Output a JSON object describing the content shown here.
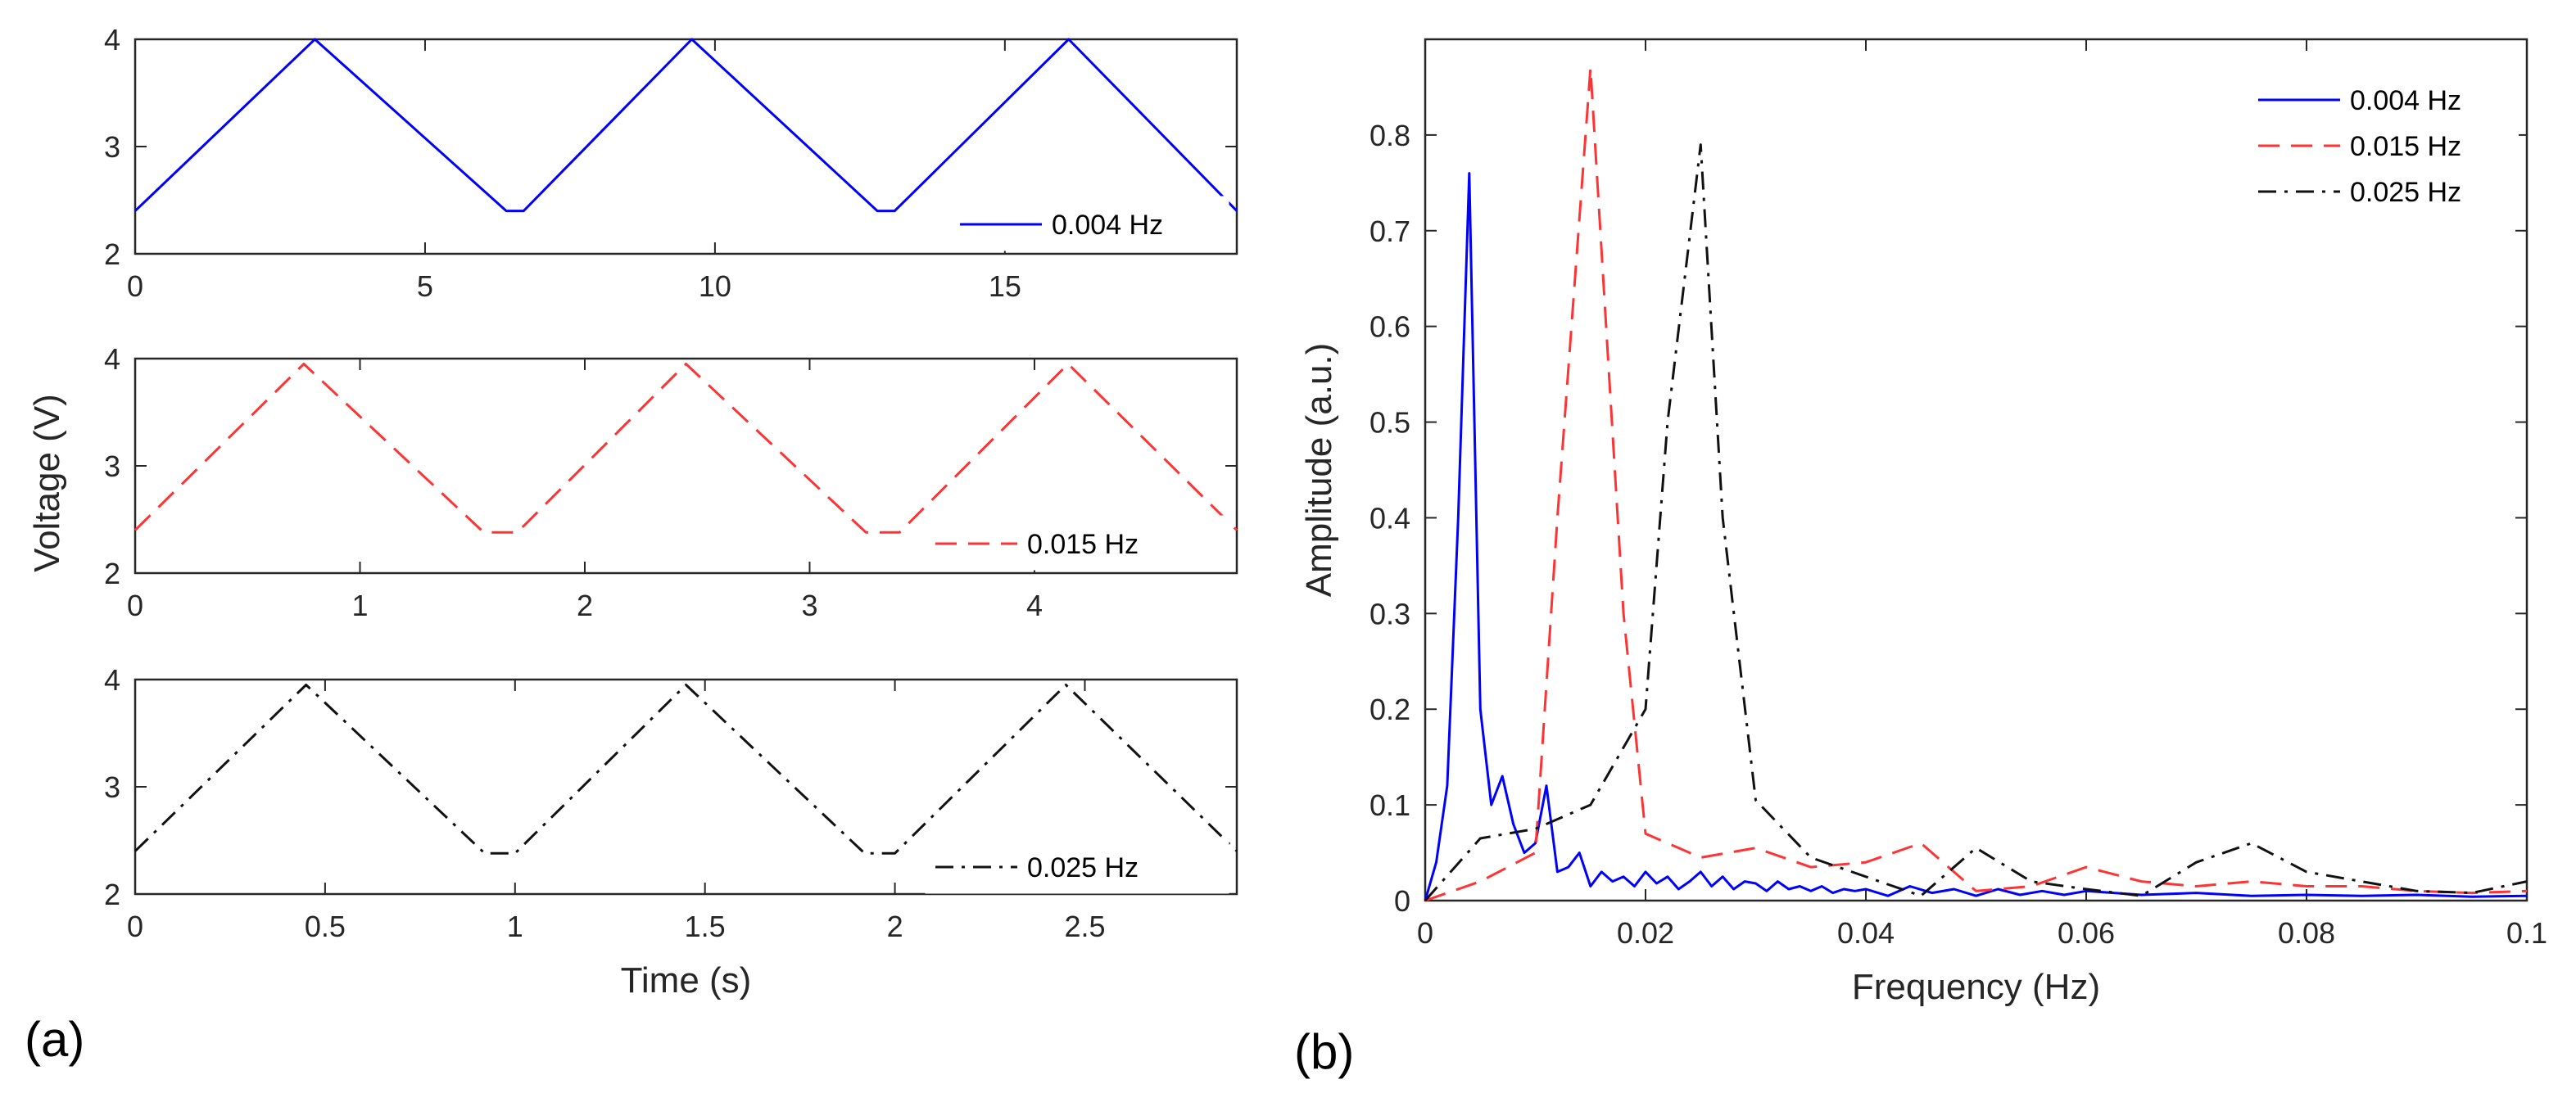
{
  "panel_labels": [
    "(a)",
    "(b)"
  ],
  "chart_data": [
    {
      "type": "line",
      "panel": "(a)",
      "subplot": 1,
      "title": "",
      "xlabel": "",
      "ylabel": "Voltage (V)",
      "xlim": [
        0,
        19
      ],
      "ylim": [
        2,
        4
      ],
      "xticks": [
        0,
        5,
        10,
        15
      ],
      "yticks": [
        2,
        3,
        4
      ],
      "xtick_labels": [
        "0",
        "5",
        "10",
        "15"
      ],
      "ytick_labels": [
        "2",
        "3",
        "4"
      ],
      "legend": [
        "0.004 Hz"
      ],
      "legend_position": "bottom-right",
      "series": [
        {
          "name": "0.004 Hz",
          "color": "#0000ff",
          "style": "solid",
          "x": [
            0,
            3.1,
            6.4,
            6.7,
            9.6,
            12.8,
            13.1,
            16.1,
            19
          ],
          "y": [
            2.4,
            4.0,
            2.4,
            2.4,
            4.0,
            2.4,
            2.4,
            4.0,
            2.4
          ]
        }
      ]
    },
    {
      "type": "line",
      "panel": "(a)",
      "subplot": 2,
      "title": "",
      "xlabel": "",
      "ylabel": "Voltage (V)",
      "xlim": [
        0,
        4.9
      ],
      "ylim": [
        2,
        4
      ],
      "xticks": [
        0,
        1,
        2,
        3,
        4
      ],
      "yticks": [
        2,
        3,
        4
      ],
      "xtick_labels": [
        "0",
        "1",
        "2",
        "3",
        "4"
      ],
      "ytick_labels": [
        "2",
        "3",
        "4"
      ],
      "legend": [
        "0.015 Hz"
      ],
      "legend_position": "bottom-right",
      "series": [
        {
          "name": "0.015 Hz",
          "color": "#ff3333",
          "style": "dashed",
          "x": [
            0,
            0.75,
            1.55,
            1.7,
            2.45,
            3.25,
            3.4,
            4.15,
            4.9
          ],
          "y": [
            2.4,
            3.95,
            2.38,
            2.38,
            3.95,
            2.38,
            2.38,
            3.95,
            2.4
          ]
        }
      ]
    },
    {
      "type": "line",
      "panel": "(a)",
      "subplot": 3,
      "title": "",
      "xlabel": "Time (s)",
      "ylabel": "Voltage (V)",
      "xlim": [
        0,
        2.9
      ],
      "ylim": [
        2,
        4
      ],
      "xticks": [
        0,
        0.5,
        1,
        1.5,
        2,
        2.5
      ],
      "yticks": [
        2,
        3,
        4
      ],
      "xtick_labels": [
        "0",
        "0.5",
        "1",
        "1.5",
        "2",
        "2.5"
      ],
      "ytick_labels": [
        "2",
        "3",
        "4"
      ],
      "legend": [
        "0.025 Hz"
      ],
      "legend_position": "bottom-right",
      "series": [
        {
          "name": "0.025 Hz",
          "color": "#111111",
          "style": "dashdot",
          "x": [
            0,
            0.45,
            0.92,
            1.0,
            1.45,
            1.92,
            2.0,
            2.45,
            2.9
          ],
          "y": [
            2.4,
            3.95,
            2.38,
            2.38,
            3.95,
            2.38,
            2.38,
            3.95,
            2.4
          ]
        }
      ]
    },
    {
      "type": "line",
      "panel": "(b)",
      "title": "",
      "xlabel": "Frequency (Hz)",
      "ylabel": "Amplitude (a.u.)",
      "xlim": [
        0,
        0.1
      ],
      "ylim": [
        0,
        0.9
      ],
      "xticks": [
        0,
        0.02,
        0.04,
        0.06,
        0.08,
        0.1
      ],
      "yticks": [
        0,
        0.1,
        0.2,
        0.3,
        0.4,
        0.5,
        0.6,
        0.7,
        0.8
      ],
      "xtick_labels": [
        "0",
        "0.02",
        "0.04",
        "0.06",
        "0.08",
        "0.1"
      ],
      "ytick_labels": [
        "0",
        "0.1",
        "0.2",
        "0.3",
        "0.4",
        "0.5",
        "0.6",
        "0.7",
        "0.8"
      ],
      "legend": [
        "0.004 Hz",
        "0.015 Hz",
        "0.025 Hz"
      ],
      "legend_position": "top-right",
      "series": [
        {
          "name": "0.004 Hz",
          "color": "#0000ff",
          "style": "solid",
          "x": [
            0,
            0.001,
            0.002,
            0.003,
            0.004,
            0.005,
            0.006,
            0.007,
            0.008,
            0.009,
            0.01,
            0.011,
            0.012,
            0.013,
            0.014,
            0.015,
            0.016,
            0.017,
            0.018,
            0.019,
            0.02,
            0.021,
            0.022,
            0.023,
            0.024,
            0.025,
            0.026,
            0.027,
            0.028,
            0.029,
            0.03,
            0.031,
            0.032,
            0.033,
            0.034,
            0.035,
            0.036,
            0.037,
            0.038,
            0.039,
            0.04,
            0.042,
            0.044,
            0.046,
            0.048,
            0.05,
            0.052,
            0.054,
            0.056,
            0.058,
            0.06,
            0.065,
            0.07,
            0.075,
            0.08,
            0.085,
            0.09,
            0.095,
            0.1
          ],
          "y": [
            0,
            0.04,
            0.12,
            0.4,
            0.76,
            0.2,
            0.1,
            0.13,
            0.08,
            0.05,
            0.06,
            0.12,
            0.03,
            0.035,
            0.05,
            0.015,
            0.03,
            0.02,
            0.025,
            0.015,
            0.03,
            0.018,
            0.025,
            0.012,
            0.02,
            0.03,
            0.015,
            0.025,
            0.012,
            0.02,
            0.018,
            0.01,
            0.02,
            0.012,
            0.015,
            0.01,
            0.015,
            0.008,
            0.012,
            0.01,
            0.012,
            0.005,
            0.015,
            0.008,
            0.012,
            0.005,
            0.012,
            0.006,
            0.01,
            0.006,
            0.01,
            0.006,
            0.008,
            0.005,
            0.006,
            0.005,
            0.006,
            0.004,
            0.005
          ]
        },
        {
          "name": "0.015 Hz",
          "color": "#ff3333",
          "style": "dashed",
          "x": [
            0,
            0.005,
            0.01,
            0.012,
            0.015,
            0.018,
            0.02,
            0.025,
            0.03,
            0.035,
            0.04,
            0.045,
            0.05,
            0.055,
            0.06,
            0.065,
            0.07,
            0.075,
            0.08,
            0.085,
            0.09,
            0.095,
            0.1
          ],
          "y": [
            0,
            0.02,
            0.05,
            0.4,
            0.87,
            0.3,
            0.07,
            0.045,
            0.055,
            0.035,
            0.04,
            0.06,
            0.01,
            0.015,
            0.035,
            0.02,
            0.015,
            0.02,
            0.015,
            0.015,
            0.01,
            0.008,
            0.01
          ]
        },
        {
          "name": "0.025 Hz",
          "color": "#111111",
          "style": "dashdot",
          "x": [
            0,
            0.005,
            0.01,
            0.015,
            0.018,
            0.02,
            0.022,
            0.025,
            0.027,
            0.03,
            0.035,
            0.04,
            0.045,
            0.05,
            0.055,
            0.06,
            0.065,
            0.07,
            0.075,
            0.08,
            0.085,
            0.09,
            0.095,
            0.1
          ],
          "y": [
            0,
            0.065,
            0.075,
            0.1,
            0.16,
            0.2,
            0.5,
            0.79,
            0.4,
            0.105,
            0.045,
            0.025,
            0.005,
            0.055,
            0.02,
            0.012,
            0.005,
            0.04,
            0.06,
            0.03,
            0.02,
            0.01,
            0.008,
            0.02
          ]
        }
      ]
    }
  ]
}
